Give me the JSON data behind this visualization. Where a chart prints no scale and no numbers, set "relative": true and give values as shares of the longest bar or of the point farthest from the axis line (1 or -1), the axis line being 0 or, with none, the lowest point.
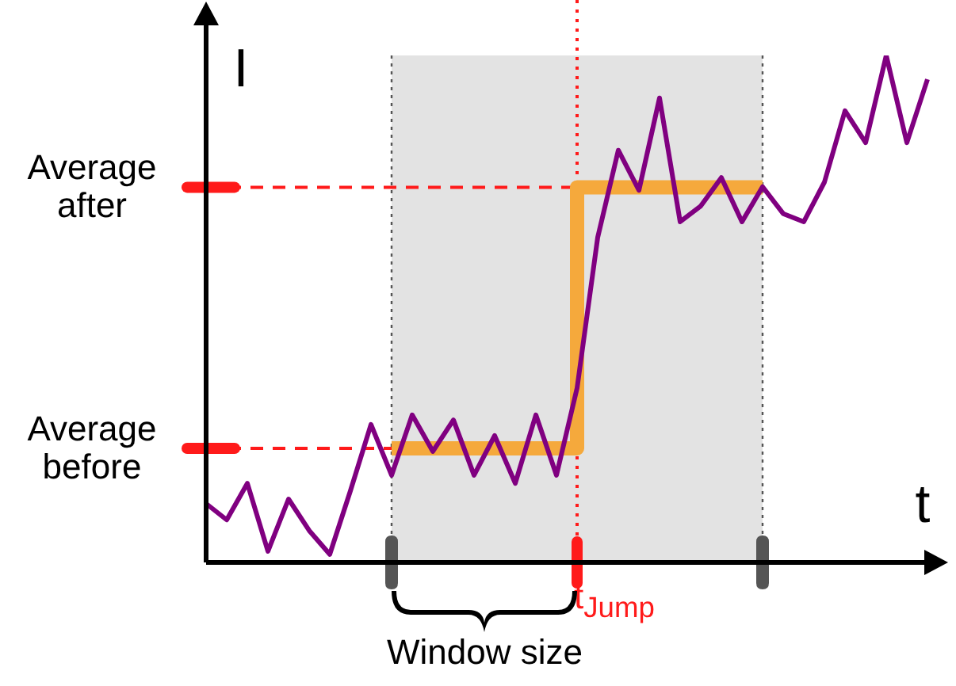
{
  "chart_data": {
    "type": "line",
    "relative": true,
    "xlabel": "t",
    "ylabel": "I",
    "marker": "none",
    "categories": [
      null,
      null,
      null,
      null,
      null,
      null,
      null,
      null,
      null,
      null,
      null,
      null,
      null,
      null,
      null,
      null,
      null,
      null,
      null,
      null,
      null,
      null,
      null,
      null,
      null,
      null,
      null,
      null,
      null,
      null,
      null,
      null,
      null,
      null,
      null,
      null
    ],
    "series": [
      {
        "color": "#800080",
        "values": [
          0.116,
          0.084,
          0.156,
          0.022,
          0.125,
          0.063,
          0.016,
          0.141,
          0.272,
          0.172,
          0.291,
          0.219,
          0.281,
          0.172,
          0.25,
          0.156,
          0.291,
          0.172,
          0.344,
          0.641,
          0.813,
          0.734,
          0.916,
          0.672,
          0.703,
          0.759,
          0.672,
          0.741,
          0.688,
          0.672,
          0.75,
          0.891,
          0.828,
          1,
          0.828,
          0.953
        ]
      },
      {
        "type": "step",
        "color": "#f5a93c",
        "values": [
          null,
          null,
          null,
          null,
          null,
          null,
          null,
          null,
          null,
          0.225,
          0.225,
          0.225,
          0.225,
          0.225,
          0.225,
          0.225,
          0.225,
          0.225,
          0.74,
          0.74,
          0.74,
          0.74,
          0.74,
          0.74,
          0.74,
          0.74,
          0.74,
          0.74,
          null,
          null,
          null,
          null,
          null,
          null,
          null,
          null
        ]
      }
    ],
    "ref_lines": [
      {
        "axis": "y",
        "value": 0.74,
        "label": "Average after",
        "color": "#ff1a1a",
        "line_style": "dashed"
      },
      {
        "axis": "y",
        "value": 0.225,
        "label": "Average before",
        "color": "#ff1a1a",
        "line_style": "dashed"
      },
      {
        "axis": "x",
        "label": "t$_{Jump}$",
        "color": "#ff1a1a",
        "line_style": "dotted"
      }
    ],
    "annotations": [
      "Window size"
    ]
  }
}
